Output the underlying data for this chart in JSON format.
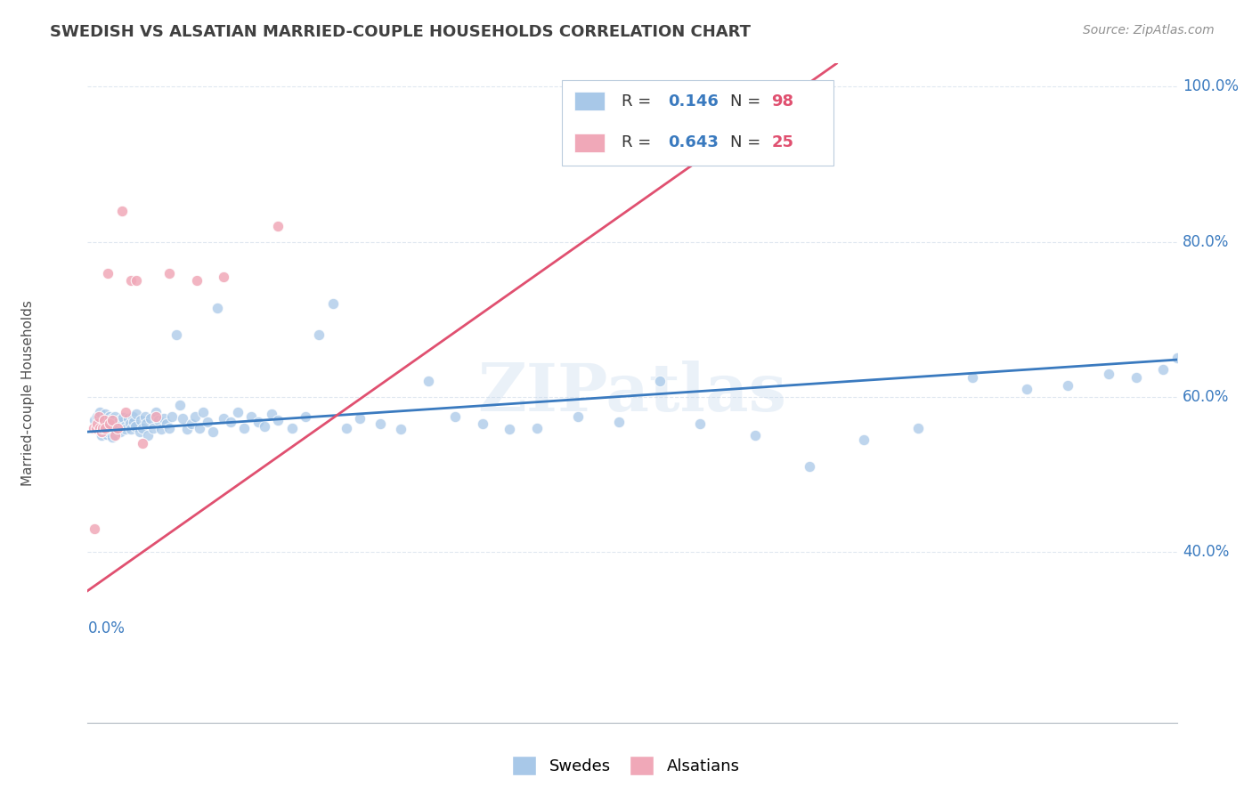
{
  "title": "SWEDISH VS ALSATIAN MARRIED-COUPLE HOUSEHOLDS CORRELATION CHART",
  "source": "Source: ZipAtlas.com",
  "ylabel": "Married-couple Households",
  "xlim": [
    0.0,
    0.8
  ],
  "ylim": [
    0.18,
    1.03
  ],
  "yticks": [
    0.4,
    0.6,
    0.8,
    1.0
  ],
  "ytick_labels": [
    "40.0%",
    "60.0%",
    "80.0%",
    "100.0%"
  ],
  "swedes_color": "#a8c8e8",
  "alsatians_color": "#f0a8b8",
  "trend_swedes_color": "#3a7abf",
  "trend_alsatians_color": "#e05070",
  "watermark": "ZIPatlas",
  "swedes_dot_size": 80,
  "alsatians_dot_size": 80,
  "swedes_x": [
    0.005,
    0.007,
    0.008,
    0.009,
    0.01,
    0.01,
    0.011,
    0.012,
    0.013,
    0.013,
    0.014,
    0.015,
    0.015,
    0.016,
    0.017,
    0.018,
    0.018,
    0.019,
    0.02,
    0.02,
    0.021,
    0.022,
    0.023,
    0.024,
    0.025,
    0.026,
    0.027,
    0.028,
    0.03,
    0.031,
    0.032,
    0.033,
    0.034,
    0.035,
    0.036,
    0.038,
    0.039,
    0.04,
    0.042,
    0.043,
    0.044,
    0.046,
    0.048,
    0.05,
    0.052,
    0.054,
    0.056,
    0.058,
    0.06,
    0.062,
    0.065,
    0.068,
    0.07,
    0.073,
    0.076,
    0.079,
    0.082,
    0.085,
    0.088,
    0.092,
    0.095,
    0.1,
    0.105,
    0.11,
    0.115,
    0.12,
    0.125,
    0.13,
    0.135,
    0.14,
    0.15,
    0.16,
    0.17,
    0.18,
    0.19,
    0.2,
    0.215,
    0.23,
    0.25,
    0.27,
    0.29,
    0.31,
    0.33,
    0.36,
    0.39,
    0.42,
    0.45,
    0.49,
    0.53,
    0.57,
    0.61,
    0.65,
    0.69,
    0.72,
    0.75,
    0.77,
    0.79,
    0.8
  ],
  "swedes_y": [
    0.57,
    0.575,
    0.565,
    0.58,
    0.56,
    0.55,
    0.558,
    0.562,
    0.572,
    0.578,
    0.552,
    0.568,
    0.555,
    0.575,
    0.56,
    0.548,
    0.572,
    0.565,
    0.558,
    0.575,
    0.565,
    0.56,
    0.57,
    0.555,
    0.568,
    0.573,
    0.562,
    0.558,
    0.572,
    0.565,
    0.558,
    0.575,
    0.568,
    0.562,
    0.578,
    0.555,
    0.57,
    0.56,
    0.575,
    0.565,
    0.55,
    0.572,
    0.56,
    0.58,
    0.57,
    0.558,
    0.572,
    0.565,
    0.56,
    0.575,
    0.68,
    0.59,
    0.572,
    0.558,
    0.565,
    0.575,
    0.56,
    0.58,
    0.568,
    0.555,
    0.715,
    0.572,
    0.568,
    0.58,
    0.56,
    0.575,
    0.568,
    0.562,
    0.578,
    0.57,
    0.56,
    0.575,
    0.68,
    0.72,
    0.56,
    0.572,
    0.565,
    0.558,
    0.62,
    0.575,
    0.565,
    0.558,
    0.56,
    0.575,
    0.568,
    0.62,
    0.565,
    0.55,
    0.51,
    0.545,
    0.56,
    0.625,
    0.61,
    0.615,
    0.63,
    0.625,
    0.635,
    0.65
  ],
  "alsatians_x": [
    0.004,
    0.005,
    0.006,
    0.007,
    0.008,
    0.009,
    0.01,
    0.011,
    0.012,
    0.013,
    0.015,
    0.016,
    0.018,
    0.02,
    0.022,
    0.025,
    0.028,
    0.032,
    0.036,
    0.04,
    0.05,
    0.06,
    0.08,
    0.1,
    0.14
  ],
  "alsatians_y": [
    0.56,
    0.43,
    0.56,
    0.565,
    0.575,
    0.56,
    0.555,
    0.56,
    0.57,
    0.56,
    0.76,
    0.565,
    0.57,
    0.55,
    0.56,
    0.84,
    0.58,
    0.75,
    0.75,
    0.54,
    0.575,
    0.76,
    0.75,
    0.755,
    0.82
  ],
  "trend_swedes_x0": 0.0,
  "trend_swedes_y0": 0.555,
  "trend_swedes_x1": 0.8,
  "trend_swedes_y1": 0.648,
  "trend_alsatians_x0": 0.0,
  "trend_alsatians_y0": 0.35,
  "trend_alsatians_x1": 0.55,
  "trend_alsatians_y1": 1.03,
  "background_color": "#ffffff",
  "grid_color": "#e0e8f0",
  "title_color": "#404040",
  "source_color": "#909090",
  "legend_R_color": "#3a7abf",
  "legend_N_color": "#e05070",
  "legend_text_color": "#333333"
}
